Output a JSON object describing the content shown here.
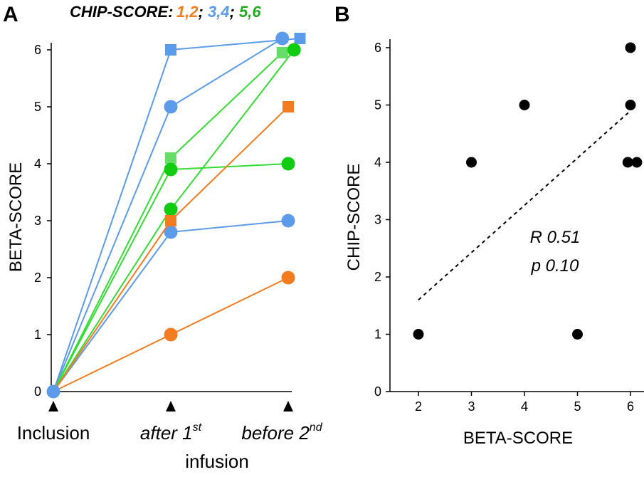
{
  "colors": {
    "group_1_2": "#f47c20",
    "group_3_4": "#5b9bea",
    "group_5_6_line": "#33dd33",
    "group_5_6_marker_square": "#66dd66",
    "group_5_6_marker_circle": "#11cc11",
    "legend_green": "#22aa22",
    "black": "#000000"
  },
  "chart_data": [
    {
      "panel": "A",
      "type": "line",
      "ylabel": "BETA-SCORE",
      "ylim": [
        0,
        6
      ],
      "yticks": [
        "0",
        "1",
        "2",
        "3",
        "4",
        "5",
        "6"
      ],
      "categories": [
        "Inclusion",
        "after 1st infusion",
        "before 2nd"
      ],
      "category_labels": [
        {
          "main": "Inclusion",
          "sup": "",
          "second_line": ""
        },
        {
          "main": "after 1",
          "sup": "st",
          "second_line": "infusion"
        },
        {
          "main": "before 2",
          "sup": "nd",
          "second_line": ""
        }
      ],
      "legend": {
        "prefix": "CHIP-SCORE:",
        "entries": [
          {
            "label": "1,2",
            "group": "group_1_2"
          },
          {
            "label": "3,4",
            "group": "group_3_4"
          },
          {
            "label": "5,6",
            "group": "group_5_6"
          }
        ]
      },
      "series": [
        {
          "name": "blue-square-high",
          "group": "group_3_4",
          "marker": "square",
          "values": [
            0,
            6.0,
            6.2
          ],
          "x_offsets": [
            0,
            0,
            0.1
          ]
        },
        {
          "name": "blue-circle-high",
          "group": "group_3_4",
          "marker": "circle",
          "values": [
            0,
            5.0,
            6.2
          ],
          "x_offsets": [
            0,
            0,
            -0.05
          ]
        },
        {
          "name": "blue-circle-low",
          "group": "group_3_4",
          "marker": "circle",
          "values": [
            0,
            2.8,
            3.0
          ],
          "x_offsets": [
            0,
            0,
            0
          ]
        },
        {
          "name": "green-square",
          "group": "group_5_6",
          "marker": "square",
          "values": [
            0,
            4.1,
            5.95
          ],
          "x_offsets": [
            0,
            0,
            -0.05
          ]
        },
        {
          "name": "green-circle-a",
          "group": "group_5_6",
          "marker": "circle",
          "values": [
            0,
            3.9,
            4.0
          ],
          "x_offsets": [
            0,
            0,
            0
          ]
        },
        {
          "name": "green-circle-b",
          "group": "group_5_6",
          "marker": "circle",
          "values": [
            0,
            3.2,
            6.0
          ],
          "x_offsets": [
            0,
            0,
            0.05
          ]
        },
        {
          "name": "orange-square",
          "group": "group_1_2",
          "marker": "square",
          "values": [
            0,
            3.0,
            5.0
          ],
          "x_offsets": [
            0,
            0,
            0
          ]
        },
        {
          "name": "orange-circle",
          "group": "group_1_2",
          "marker": "circle",
          "values": [
            0,
            1.0,
            2.0
          ],
          "x_offsets": [
            0,
            0,
            0
          ]
        }
      ]
    },
    {
      "panel": "B",
      "type": "scatter",
      "xlabel": "BETA-SCORE",
      "ylabel": "CHIP-SCORE",
      "xlim": [
        1.5,
        6.2
      ],
      "ylim": [
        0,
        6
      ],
      "xticks": [
        "2",
        "3",
        "4",
        "5",
        "6"
      ],
      "yticks": [
        "0",
        "1",
        "2",
        "3",
        "4",
        "5",
        "6"
      ],
      "points": [
        {
          "x": 2,
          "y": 1
        },
        {
          "x": 3,
          "y": 4
        },
        {
          "x": 4,
          "y": 5
        },
        {
          "x": 5,
          "y": 1
        },
        {
          "x": 6,
          "y": 6
        },
        {
          "x": 6,
          "y": 5
        },
        {
          "x": 5.95,
          "y": 4
        },
        {
          "x": 6.12,
          "y": 4
        }
      ],
      "trendline": {
        "x": [
          2,
          6
        ],
        "y": [
          1.6,
          4.9
        ]
      },
      "annotations": [
        "R 0.51",
        "p 0.10"
      ]
    }
  ]
}
